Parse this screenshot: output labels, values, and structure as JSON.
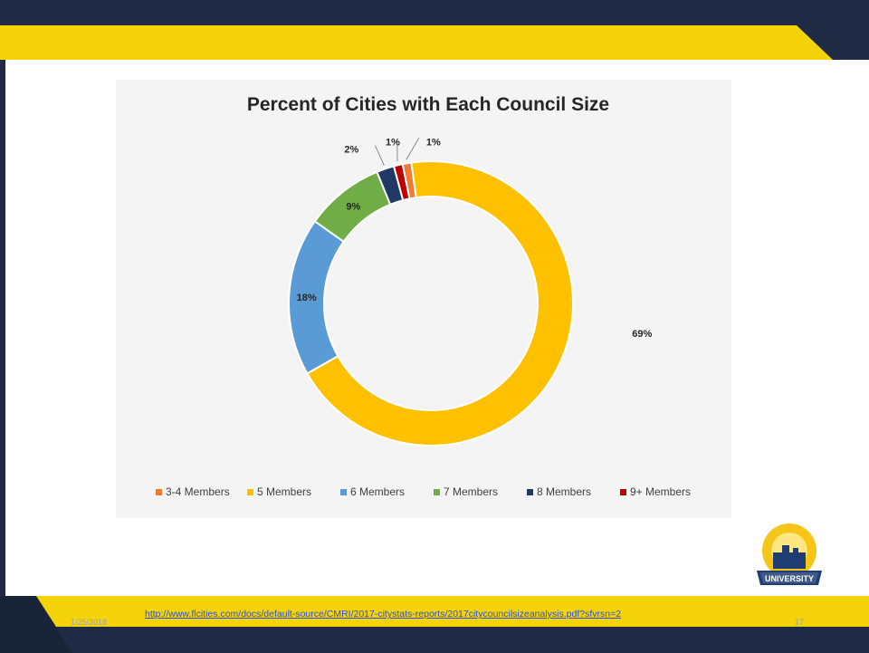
{
  "slide": {
    "date": "1/25/2018",
    "link": "http://www.flcities.com/docs/default-source/CMRI/2017-citystats-reports/2017citycouncilsizeanalysis.pdf?sfvrsn=2",
    "page_number": "17",
    "logo_text_top": "FLORIDA LEAGUE OF CITIES, INC.",
    "logo_text_bottom": "UNIVERSITY"
  },
  "colors": {
    "navy": "#1f2a44",
    "yellow": "#f5d30a",
    "white": "#ffffff"
  },
  "chart_data": {
    "type": "pie",
    "donut": true,
    "title": "Percent of Cities with Each Council Size",
    "legend_position": "bottom",
    "slices": [
      {
        "label": "3-4 Members",
        "value": 1,
        "data_label": "1%",
        "color": "#ed7d31"
      },
      {
        "label": "5 Members",
        "value": 69,
        "data_label": "69%",
        "color": "#ffc000"
      },
      {
        "label": "6 Members",
        "value": 18,
        "data_label": "18%",
        "color": "#5b9bd5"
      },
      {
        "label": "7 Members",
        "value": 9,
        "data_label": "9%",
        "color": "#70ad47"
      },
      {
        "label": "8 Members",
        "value": 2,
        "data_label": "2%",
        "color": "#1f3864"
      },
      {
        "label": "9+ Members",
        "value": 1,
        "data_label": "1%",
        "color": "#c00000"
      }
    ]
  }
}
